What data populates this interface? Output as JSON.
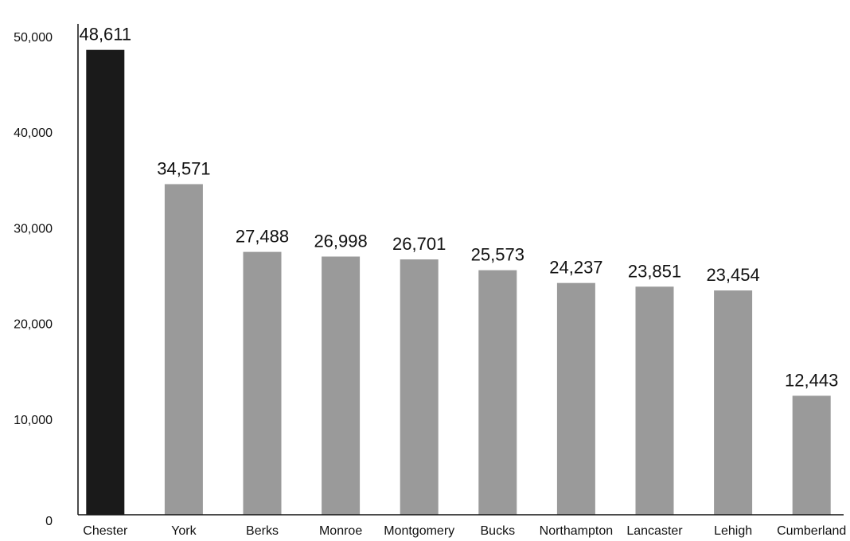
{
  "chart_data": {
    "type": "bar",
    "title": "",
    "xlabel": "",
    "ylabel": "",
    "ylim": [
      0,
      50000
    ],
    "yticks": [
      0,
      10000,
      20000,
      30000,
      40000,
      50000
    ],
    "ytick_labels": [
      "0",
      "10,000",
      "20,000",
      "30,000",
      "40,000",
      "50,000"
    ],
    "grid": false,
    "categories": [
      "Chester",
      "York",
      "Berks",
      "Monroe",
      "Montgomery",
      "Bucks",
      "Northampton",
      "Lancaster",
      "Lehigh",
      "Cumberland"
    ],
    "values": [
      48611,
      34571,
      27488,
      26998,
      26701,
      25573,
      24237,
      23851,
      23454,
      12443
    ],
    "value_labels": [
      "48,611",
      "34,571",
      "27,488",
      "26,998",
      "26,701",
      "25,573",
      "24,237",
      "23,851",
      "23,454",
      "12,443"
    ],
    "highlight_index": 0,
    "colors": {
      "highlight": "#1a1a1a",
      "bar": "#9a9a9a",
      "axis": "#111111",
      "text": "#111111"
    }
  }
}
